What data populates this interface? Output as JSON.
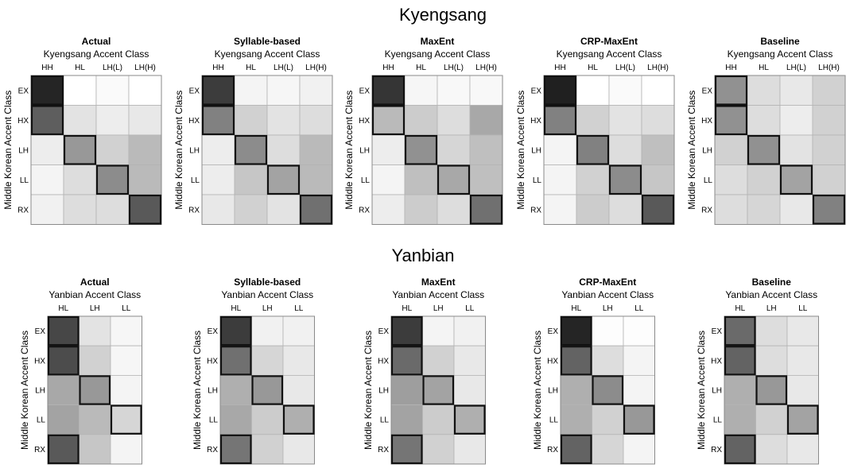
{
  "chart_data": [
    {
      "type": "heatmap",
      "dialect": "Kyengsang",
      "section_title": "Kyengsang",
      "xlabel": "Kyengsang Accent Class",
      "ylabel": "Middle Korean Accent Class",
      "x_categories": [
        "HH",
        "HL",
        "LH(L)",
        "LH(H)"
      ],
      "y_categories": [
        "EX",
        "HX",
        "LH",
        "LL",
        "RX"
      ],
      "value_scale": "shade darkness 0 (white) to 1 (black)",
      "panels": [
        {
          "title": "Actual",
          "values": [
            [
              0.95,
              0.0,
              0.02,
              0.0
            ],
            [
              0.7,
              0.12,
              0.08,
              0.1
            ],
            [
              0.08,
              0.45,
              0.2,
              0.3
            ],
            [
              0.05,
              0.15,
              0.5,
              0.3
            ],
            [
              0.06,
              0.15,
              0.15,
              0.72
            ]
          ],
          "highlight": [
            [
              0,
              0
            ],
            [
              1,
              0
            ],
            [
              2,
              1
            ],
            [
              3,
              2
            ],
            [
              4,
              3
            ]
          ]
        },
        {
          "title": "Syllable-based",
          "values": [
            [
              0.85,
              0.05,
              0.04,
              0.06
            ],
            [
              0.55,
              0.2,
              0.12,
              0.15
            ],
            [
              0.08,
              0.5,
              0.15,
              0.3
            ],
            [
              0.08,
              0.25,
              0.4,
              0.3
            ],
            [
              0.1,
              0.2,
              0.12,
              0.62
            ]
          ],
          "highlight": [
            [
              0,
              0
            ],
            [
              1,
              0
            ],
            [
              2,
              1
            ],
            [
              3,
              2
            ],
            [
              4,
              3
            ]
          ]
        },
        {
          "title": "MaxEnt",
          "values": [
            [
              0.88,
              0.04,
              0.03,
              0.03
            ],
            [
              0.3,
              0.22,
              0.15,
              0.38
            ],
            [
              0.08,
              0.48,
              0.18,
              0.28
            ],
            [
              0.05,
              0.28,
              0.38,
              0.28
            ],
            [
              0.08,
              0.22,
              0.15,
              0.62
            ]
          ],
          "highlight": [
            [
              0,
              0
            ],
            [
              1,
              0
            ],
            [
              2,
              1
            ],
            [
              3,
              2
            ],
            [
              4,
              3
            ]
          ]
        },
        {
          "title": "CRP-MaxEnt",
          "values": [
            [
              0.97,
              0.0,
              0.02,
              0.0
            ],
            [
              0.55,
              0.2,
              0.12,
              0.15
            ],
            [
              0.05,
              0.55,
              0.15,
              0.28
            ],
            [
              0.05,
              0.2,
              0.5,
              0.25
            ],
            [
              0.05,
              0.22,
              0.15,
              0.72
            ]
          ],
          "highlight": [
            [
              0,
              0
            ],
            [
              1,
              0
            ],
            [
              2,
              1
            ],
            [
              3,
              2
            ],
            [
              4,
              3
            ]
          ]
        },
        {
          "title": "Baseline",
          "values": [
            [
              0.48,
              0.15,
              0.1,
              0.2
            ],
            [
              0.48,
              0.15,
              0.08,
              0.2
            ],
            [
              0.2,
              0.48,
              0.12,
              0.2
            ],
            [
              0.15,
              0.2,
              0.4,
              0.2
            ],
            [
              0.15,
              0.18,
              0.1,
              0.55
            ]
          ],
          "highlight": [
            [
              0,
              0
            ],
            [
              1,
              0
            ],
            [
              2,
              1
            ],
            [
              3,
              2
            ],
            [
              4,
              3
            ]
          ]
        }
      ]
    },
    {
      "type": "heatmap",
      "dialect": "Yanbian",
      "section_title": "Yanbian",
      "xlabel": "Yanbian Accent Class",
      "ylabel": "Middle Korean Accent Class",
      "x_categories": [
        "HL",
        "LH",
        "LL"
      ],
      "y_categories": [
        "EX",
        "HX",
        "LH",
        "LL",
        "RX"
      ],
      "value_scale": "shade darkness 0 (white) to 1 (black)",
      "panels": [
        {
          "title": "Actual",
          "values": [
            [
              0.8,
              0.12,
              0.04
            ],
            [
              0.78,
              0.2,
              0.04
            ],
            [
              0.38,
              0.45,
              0.05
            ],
            [
              0.4,
              0.3,
              0.18
            ],
            [
              0.72,
              0.25,
              0.05
            ]
          ],
          "highlight": [
            [
              0,
              0
            ],
            [
              1,
              0
            ],
            [
              2,
              1
            ],
            [
              3,
              2
            ],
            [
              4,
              0
            ]
          ]
        },
        {
          "title": "Syllable-based",
          "values": [
            [
              0.85,
              0.06,
              0.06
            ],
            [
              0.62,
              0.18,
              0.1
            ],
            [
              0.35,
              0.45,
              0.1
            ],
            [
              0.38,
              0.22,
              0.35
            ],
            [
              0.6,
              0.2,
              0.1
            ]
          ],
          "highlight": [
            [
              0,
              0
            ],
            [
              1,
              0
            ],
            [
              2,
              1
            ],
            [
              3,
              2
            ],
            [
              4,
              0
            ]
          ]
        },
        {
          "title": "MaxEnt",
          "values": [
            [
              0.85,
              0.05,
              0.06
            ],
            [
              0.65,
              0.2,
              0.1
            ],
            [
              0.42,
              0.4,
              0.1
            ],
            [
              0.4,
              0.22,
              0.35
            ],
            [
              0.6,
              0.2,
              0.1
            ]
          ],
          "highlight": [
            [
              0,
              0
            ],
            [
              1,
              0
            ],
            [
              2,
              1
            ],
            [
              3,
              2
            ],
            [
              4,
              0
            ]
          ]
        },
        {
          "title": "CRP-MaxEnt",
          "values": [
            [
              0.95,
              0.01,
              0.01
            ],
            [
              0.68,
              0.15,
              0.05
            ],
            [
              0.35,
              0.5,
              0.05
            ],
            [
              0.35,
              0.2,
              0.45
            ],
            [
              0.68,
              0.18,
              0.05
            ]
          ],
          "highlight": [
            [
              0,
              0
            ],
            [
              1,
              0
            ],
            [
              2,
              1
            ],
            [
              3,
              2
            ],
            [
              4,
              0
            ]
          ]
        },
        {
          "title": "Baseline",
          "values": [
            [
              0.65,
              0.15,
              0.1
            ],
            [
              0.68,
              0.15,
              0.1
            ],
            [
              0.35,
              0.45,
              0.1
            ],
            [
              0.35,
              0.2,
              0.4
            ],
            [
              0.68,
              0.15,
              0.1
            ]
          ],
          "highlight": [
            [
              0,
              0
            ],
            [
              1,
              0
            ],
            [
              2,
              1
            ],
            [
              3,
              2
            ],
            [
              4,
              0
            ]
          ]
        }
      ]
    }
  ]
}
